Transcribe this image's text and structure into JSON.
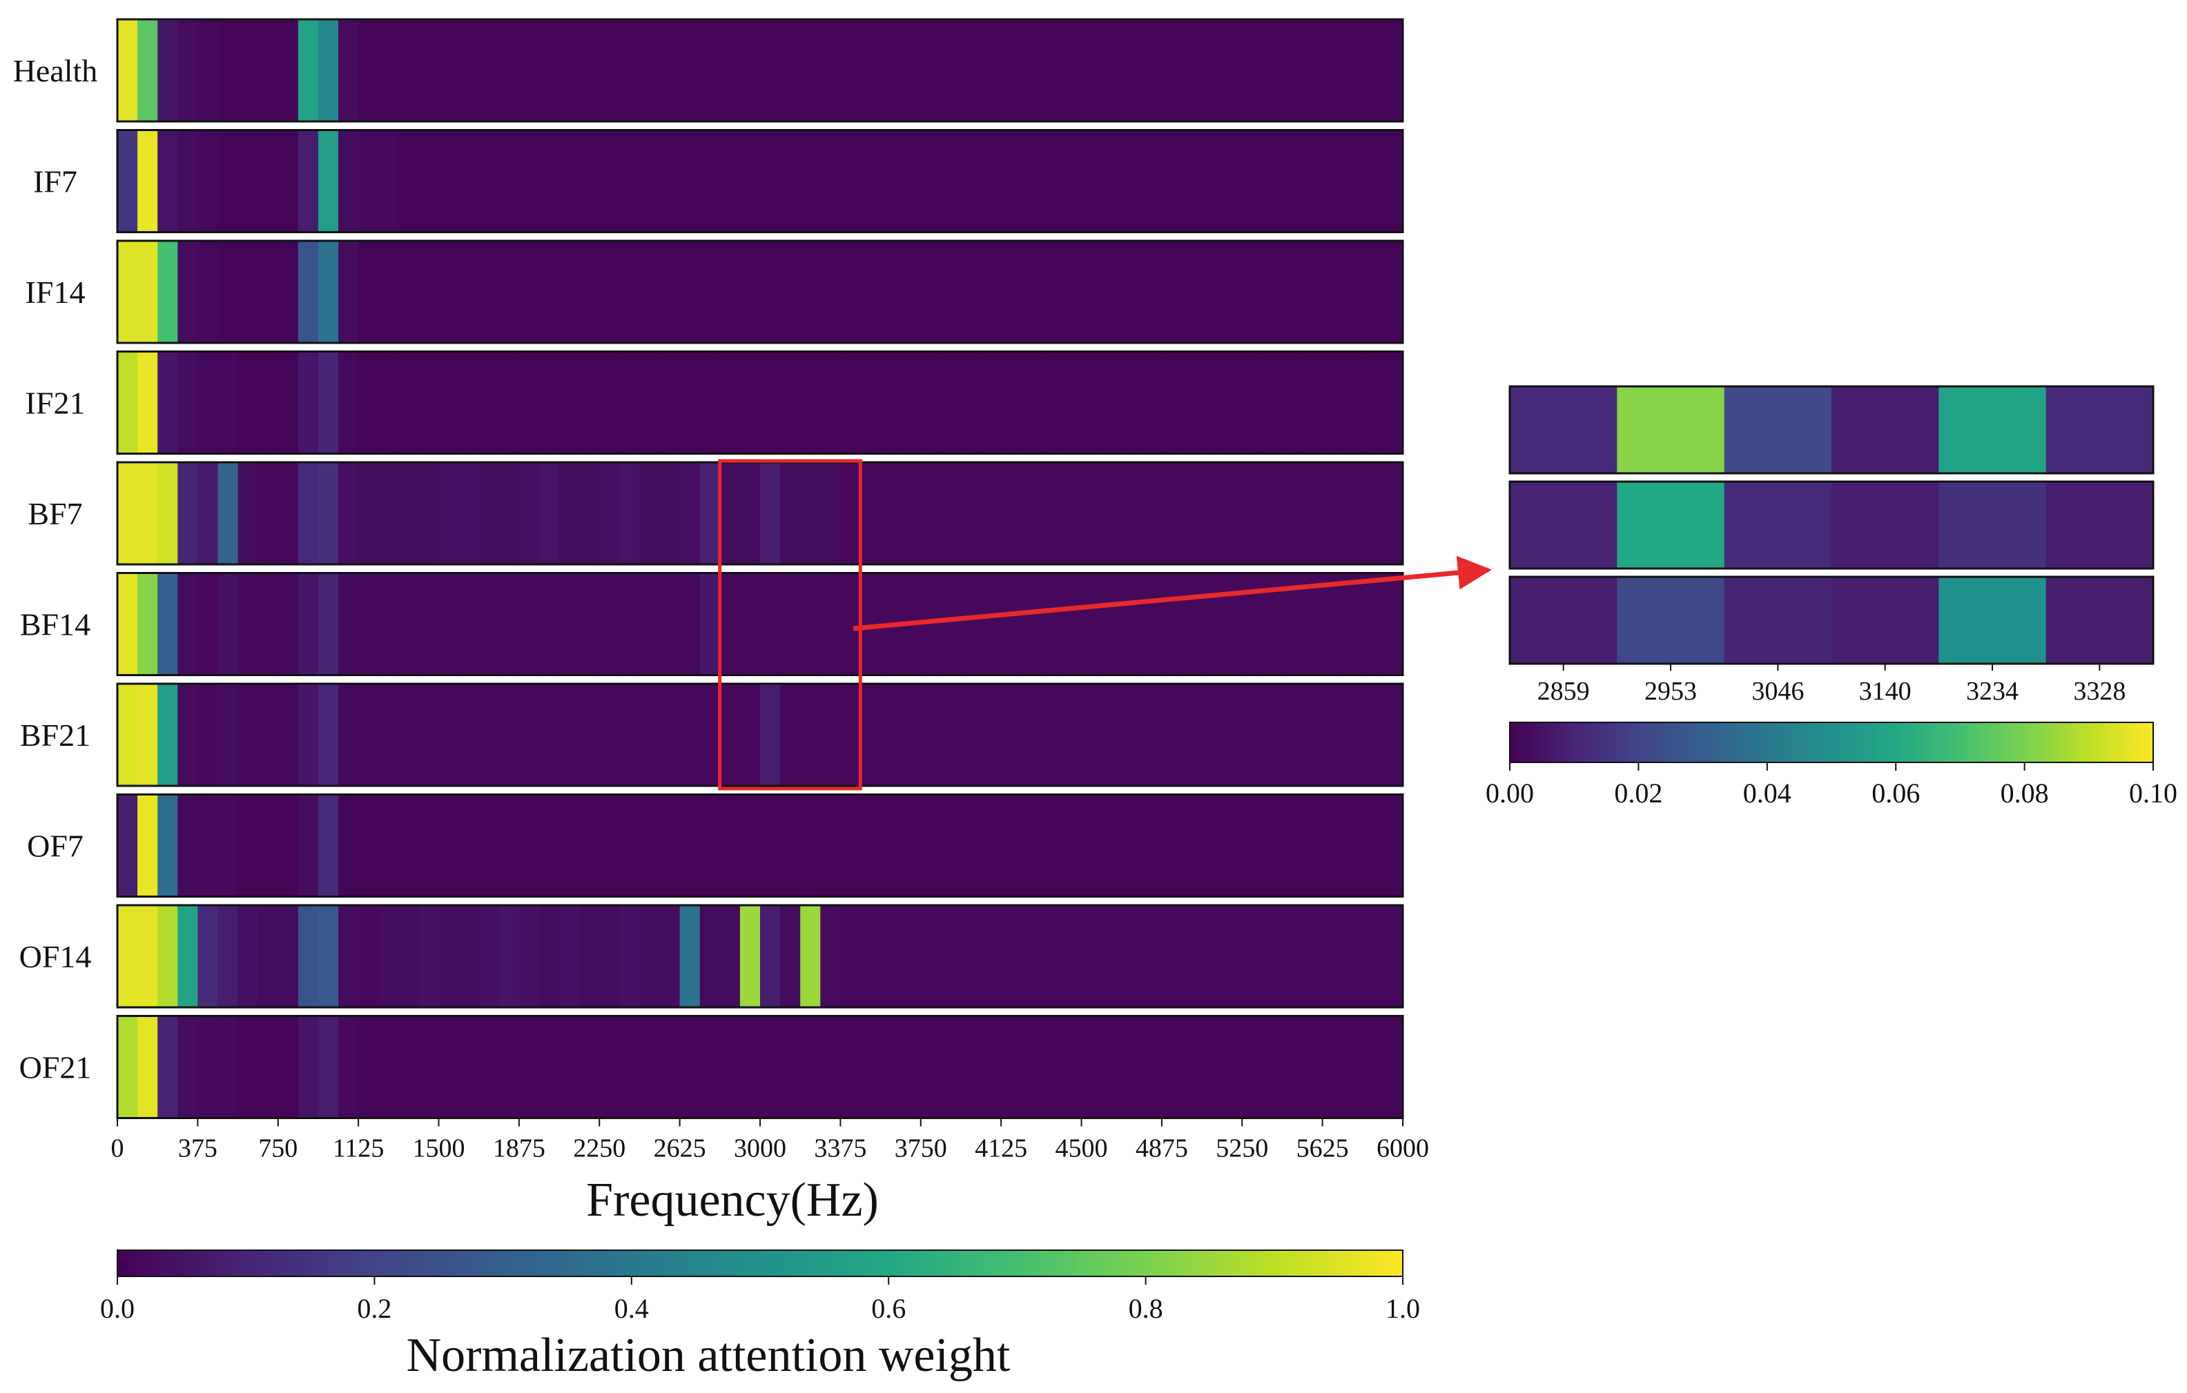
{
  "chart_data": [
    {
      "type": "heatmap",
      "rows": [
        "Health",
        "IF7",
        "IF14",
        "IF21",
        "BF7",
        "BF14",
        "BF21",
        "OF7",
        "OF14",
        "OF21"
      ],
      "x_range": [
        0,
        6000
      ],
      "bin_width": 93.75,
      "n_bins": 64,
      "xticks": [
        "0",
        "375",
        "750",
        "1125",
        "1500",
        "1875",
        "2250",
        "2625",
        "3000",
        "3375",
        "3750",
        "4125",
        "4500",
        "4875",
        "5250",
        "5625",
        "6000"
      ],
      "xlabel": "Frequency(Hz)",
      "colorbar": {
        "label": "Normalization attention weight",
        "range": [
          0.0,
          1.0
        ],
        "ticks": [
          "0.0",
          "0.2",
          "0.4",
          "0.6",
          "0.8",
          "1.0"
        ],
        "colormap": "viridis"
      },
      "values": [
        [
          0.96,
          0.74,
          0.06,
          0.03,
          0.02,
          0.01,
          0.01,
          0.01,
          0.01,
          0.58,
          0.46,
          0.03,
          0.01,
          0.01,
          0.01,
          0.01,
          0.01,
          0.01,
          0.01,
          0.01,
          0.01,
          0.01,
          0.01,
          0.01,
          0.01,
          0.01,
          0.01,
          0.01,
          0.01,
          0.01,
          0.01,
          0.01,
          0.01,
          0.01,
          0.01,
          0.01,
          0.01,
          0.01,
          0.01,
          0.01,
          0.01,
          0.01,
          0.01,
          0.01,
          0.01,
          0.01,
          0.01,
          0.01,
          0.01,
          0.01,
          0.01,
          0.01,
          0.01,
          0.01,
          0.01,
          0.01,
          0.01,
          0.01,
          0.01,
          0.01,
          0.01,
          0.01,
          0.01,
          0.01
        ],
        [
          0.16,
          0.97,
          0.05,
          0.03,
          0.02,
          0.01,
          0.01,
          0.01,
          0.01,
          0.08,
          0.55,
          0.03,
          0.02,
          0.02,
          0.01,
          0.01,
          0.01,
          0.01,
          0.01,
          0.01,
          0.01,
          0.01,
          0.01,
          0.01,
          0.01,
          0.01,
          0.01,
          0.01,
          0.01,
          0.01,
          0.01,
          0.01,
          0.01,
          0.01,
          0.01,
          0.01,
          0.01,
          0.01,
          0.01,
          0.01,
          0.01,
          0.01,
          0.01,
          0.01,
          0.01,
          0.01,
          0.01,
          0.01,
          0.01,
          0.01,
          0.01,
          0.01,
          0.01,
          0.01,
          0.01,
          0.01,
          0.01,
          0.01,
          0.01,
          0.01,
          0.01,
          0.01,
          0.01,
          0.01
        ],
        [
          0.95,
          0.95,
          0.7,
          0.03,
          0.02,
          0.01,
          0.01,
          0.01,
          0.01,
          0.26,
          0.38,
          0.03,
          0.01,
          0.01,
          0.01,
          0.01,
          0.01,
          0.01,
          0.01,
          0.01,
          0.01,
          0.01,
          0.01,
          0.01,
          0.01,
          0.01,
          0.01,
          0.01,
          0.01,
          0.01,
          0.01,
          0.01,
          0.01,
          0.01,
          0.01,
          0.01,
          0.01,
          0.01,
          0.01,
          0.01,
          0.01,
          0.01,
          0.01,
          0.01,
          0.01,
          0.01,
          0.01,
          0.01,
          0.01,
          0.01,
          0.01,
          0.01,
          0.01,
          0.01,
          0.01,
          0.01,
          0.01,
          0.01,
          0.01,
          0.01,
          0.01,
          0.01,
          0.01,
          0.01
        ],
        [
          0.9,
          0.97,
          0.06,
          0.03,
          0.02,
          0.02,
          0.01,
          0.01,
          0.01,
          0.06,
          0.1,
          0.02,
          0.01,
          0.01,
          0.01,
          0.01,
          0.01,
          0.01,
          0.01,
          0.01,
          0.01,
          0.01,
          0.01,
          0.01,
          0.01,
          0.01,
          0.01,
          0.01,
          0.01,
          0.01,
          0.01,
          0.01,
          0.01,
          0.01,
          0.01,
          0.01,
          0.01,
          0.01,
          0.01,
          0.01,
          0.01,
          0.01,
          0.01,
          0.01,
          0.01,
          0.01,
          0.01,
          0.01,
          0.01,
          0.01,
          0.01,
          0.01,
          0.01,
          0.01,
          0.01,
          0.01,
          0.01,
          0.01,
          0.01,
          0.01,
          0.01,
          0.01,
          0.01,
          0.01
        ],
        [
          0.96,
          0.96,
          0.93,
          0.1,
          0.07,
          0.32,
          0.03,
          0.02,
          0.02,
          0.12,
          0.14,
          0.04,
          0.03,
          0.03,
          0.03,
          0.03,
          0.04,
          0.04,
          0.03,
          0.03,
          0.04,
          0.05,
          0.03,
          0.03,
          0.04,
          0.05,
          0.03,
          0.03,
          0.04,
          0.09,
          0.03,
          0.03,
          0.08,
          0.03,
          0.03,
          0.03,
          0.02,
          0.02,
          0.02,
          0.02,
          0.02,
          0.02,
          0.02,
          0.02,
          0.02,
          0.02,
          0.02,
          0.02,
          0.02,
          0.02,
          0.02,
          0.02,
          0.02,
          0.02,
          0.02,
          0.02,
          0.02,
          0.02,
          0.02,
          0.02,
          0.02,
          0.02,
          0.02,
          0.02
        ],
        [
          0.96,
          0.82,
          0.3,
          0.03,
          0.02,
          0.04,
          0.02,
          0.02,
          0.02,
          0.06,
          0.1,
          0.02,
          0.02,
          0.02,
          0.02,
          0.02,
          0.02,
          0.02,
          0.02,
          0.02,
          0.02,
          0.02,
          0.02,
          0.02,
          0.02,
          0.02,
          0.02,
          0.02,
          0.02,
          0.06,
          0.02,
          0.02,
          0.02,
          0.02,
          0.02,
          0.02,
          0.02,
          0.02,
          0.02,
          0.02,
          0.02,
          0.02,
          0.02,
          0.02,
          0.02,
          0.02,
          0.02,
          0.02,
          0.02,
          0.02,
          0.02,
          0.02,
          0.02,
          0.02,
          0.02,
          0.02,
          0.02,
          0.02,
          0.02,
          0.02,
          0.02,
          0.02,
          0.02,
          0.02
        ],
        [
          0.95,
          0.96,
          0.55,
          0.03,
          0.02,
          0.03,
          0.02,
          0.02,
          0.02,
          0.06,
          0.11,
          0.02,
          0.02,
          0.02,
          0.02,
          0.02,
          0.02,
          0.02,
          0.02,
          0.02,
          0.02,
          0.02,
          0.02,
          0.02,
          0.02,
          0.02,
          0.02,
          0.02,
          0.02,
          0.02,
          0.02,
          0.02,
          0.08,
          0.02,
          0.02,
          0.02,
          0.02,
          0.02,
          0.02,
          0.02,
          0.02,
          0.02,
          0.02,
          0.02,
          0.02,
          0.02,
          0.02,
          0.02,
          0.02,
          0.02,
          0.02,
          0.02,
          0.02,
          0.02,
          0.02,
          0.02,
          0.02,
          0.02,
          0.02,
          0.02,
          0.02,
          0.02,
          0.02,
          0.02
        ],
        [
          0.08,
          0.97,
          0.36,
          0.02,
          0.02,
          0.02,
          0.01,
          0.01,
          0.01,
          0.03,
          0.12,
          0.01,
          0.01,
          0.01,
          0.01,
          0.01,
          0.01,
          0.01,
          0.01,
          0.01,
          0.01,
          0.01,
          0.01,
          0.01,
          0.01,
          0.01,
          0.01,
          0.01,
          0.01,
          0.01,
          0.01,
          0.01,
          0.01,
          0.01,
          0.01,
          0.01,
          0.01,
          0.01,
          0.01,
          0.01,
          0.01,
          0.01,
          0.01,
          0.01,
          0.01,
          0.01,
          0.01,
          0.01,
          0.01,
          0.01,
          0.01,
          0.01,
          0.01,
          0.01,
          0.01,
          0.01,
          0.01,
          0.01,
          0.01,
          0.01,
          0.01,
          0.01,
          0.01,
          0.01
        ],
        [
          0.96,
          0.96,
          0.88,
          0.58,
          0.12,
          0.08,
          0.04,
          0.03,
          0.03,
          0.26,
          0.28,
          0.03,
          0.02,
          0.03,
          0.03,
          0.04,
          0.03,
          0.03,
          0.04,
          0.05,
          0.04,
          0.03,
          0.04,
          0.03,
          0.03,
          0.04,
          0.03,
          0.03,
          0.38,
          0.03,
          0.03,
          0.85,
          0.08,
          0.03,
          0.85,
          0.03,
          0.02,
          0.02,
          0.02,
          0.02,
          0.02,
          0.02,
          0.02,
          0.02,
          0.02,
          0.02,
          0.02,
          0.02,
          0.02,
          0.02,
          0.02,
          0.02,
          0.02,
          0.02,
          0.02,
          0.02,
          0.02,
          0.02,
          0.02,
          0.02,
          0.02,
          0.02,
          0.02,
          0.02
        ],
        [
          0.88,
          0.96,
          0.1,
          0.03,
          0.02,
          0.02,
          0.01,
          0.01,
          0.01,
          0.05,
          0.08,
          0.02,
          0.01,
          0.01,
          0.01,
          0.01,
          0.01,
          0.01,
          0.01,
          0.01,
          0.01,
          0.01,
          0.01,
          0.01,
          0.01,
          0.01,
          0.01,
          0.01,
          0.01,
          0.01,
          0.01,
          0.01,
          0.01,
          0.01,
          0.01,
          0.01,
          0.01,
          0.01,
          0.01,
          0.01,
          0.01,
          0.01,
          0.01,
          0.01,
          0.01,
          0.01,
          0.01,
          0.01,
          0.01,
          0.01,
          0.01,
          0.01,
          0.01,
          0.01,
          0.01,
          0.01,
          0.01,
          0.01,
          0.01,
          0.01,
          0.01,
          0.01,
          0.01,
          0.01
        ]
      ]
    },
    {
      "type": "heatmap",
      "rows": [
        "",
        "",
        ""
      ],
      "xticks": [
        "2859",
        "2953",
        "3046",
        "3140",
        "3234",
        "3328"
      ],
      "colorbar": {
        "label": "",
        "range": [
          0.0,
          0.1
        ],
        "ticks": [
          "0.00",
          "0.02",
          "0.04",
          "0.06",
          "0.08",
          "0.10"
        ],
        "colormap": "viridis"
      },
      "values": [
        [
          0.012,
          0.082,
          0.022,
          0.008,
          0.058,
          0.012
        ],
        [
          0.01,
          0.06,
          0.012,
          0.008,
          0.014,
          0.008
        ],
        [
          0.008,
          0.022,
          0.01,
          0.008,
          0.05,
          0.008
        ]
      ]
    }
  ],
  "annotation": {
    "highlight_color": "#e8282b",
    "highlight_x_range": [
      2812,
      3468
    ],
    "highlight_rows": [
      "BF7",
      "BF21"
    ]
  }
}
